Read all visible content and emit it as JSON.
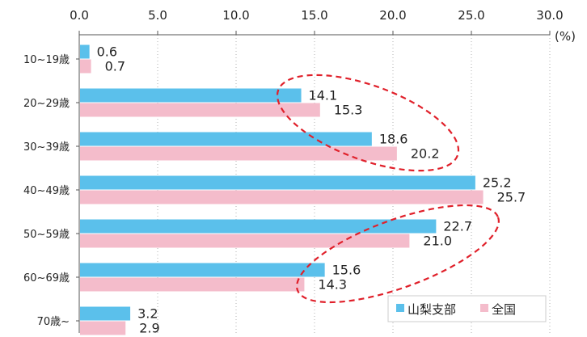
{
  "chart_data": {
    "type": "bar",
    "orientation": "horizontal",
    "unit_label": "(%)",
    "categories": [
      "10~19歳",
      "20~29歳",
      "30~39歳",
      "40~49歳",
      "50~59歳",
      "60~69歳",
      "70歳~"
    ],
    "series": [
      {
        "name": "山梨支部",
        "values": [
          0.6,
          14.1,
          18.6,
          25.2,
          22.7,
          15.6,
          3.2
        ],
        "color": "#5bc0eb"
      },
      {
        "name": "全国",
        "values": [
          0.7,
          15.3,
          20.2,
          25.7,
          21.0,
          14.3,
          2.9
        ],
        "color": "#f4bccb"
      }
    ],
    "xlim": [
      0,
      30
    ],
    "x_ticks": [
      "0.0",
      "5.0",
      "10.0",
      "15.0",
      "20.0",
      "25.0",
      "30.0"
    ],
    "grid": "dotted vertical",
    "legend_position": "bottom-right",
    "annotation_color": "#e0202a",
    "highlighted_categories": [
      [
        "20~29歳",
        "30~39歳"
      ],
      [
        "50~59歳",
        "60~69歳"
      ]
    ]
  }
}
